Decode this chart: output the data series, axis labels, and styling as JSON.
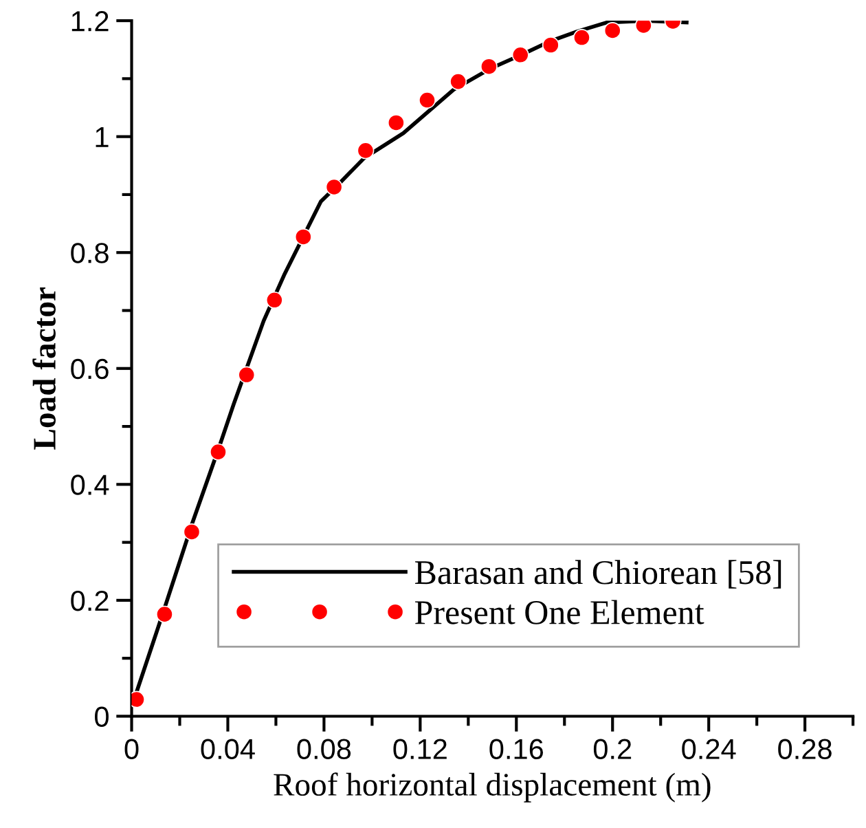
{
  "chart_data": {
    "type": "line",
    "xlabel": "Roof horizontal displacement (m)",
    "ylabel": "Load factor",
    "xlim": [
      0,
      0.3
    ],
    "xticks": [
      {
        "value": 0,
        "label": "0"
      },
      0.04,
      0.08,
      0.12,
      0.16,
      {
        "value": 0.2,
        "label": "0.2"
      },
      0.24,
      0.28
    ],
    "ylim": [
      0,
      1.2
    ],
    "yticks": [
      0,
      0.2,
      0.4,
      0.6,
      0.8,
      1,
      1.2
    ],
    "grid": false,
    "legend": "bottom right",
    "series": [
      {
        "name": "Barasan and Chiorean [58]",
        "color": "#000000",
        "line_style": "solid",
        "marker": "none",
        "x": [
          0.002,
          0.0135,
          0.0253,
          0.0367,
          0.0425,
          0.0549,
          0.0634,
          0.0787,
          0.0863,
          0.0967,
          0.113,
          0.1339,
          0.149,
          0.1625,
          0.1737,
          0.185,
          0.1977,
          0.2139,
          0.2308
        ],
        "values": [
          0.041,
          0.184,
          0.334,
          0.468,
          0.539,
          0.682,
          0.761,
          0.888,
          0.919,
          0.963,
          1.006,
          1.081,
          1.117,
          1.142,
          1.164,
          1.181,
          1.197,
          1.2,
          1.197
        ]
      },
      {
        "name": "Present One Element",
        "type": "scatter",
        "color": "#ff0000",
        "marker": "circle",
        "x": [
          0.002,
          0.0137,
          0.025,
          0.036,
          0.0478,
          0.0594,
          0.0714,
          0.0842,
          0.0973,
          0.11,
          0.1229,
          0.1358,
          0.1486,
          0.1617,
          0.1743,
          0.1872,
          0.2,
          0.2129,
          0.2251
        ],
        "values": [
          0.029,
          0.176,
          0.318,
          0.456,
          0.589,
          0.718,
          0.827,
          0.913,
          0.976,
          1.024,
          1.063,
          1.095,
          1.121,
          1.141,
          1.158,
          1.171,
          1.183,
          1.192,
          1.199
        ]
      }
    ]
  }
}
